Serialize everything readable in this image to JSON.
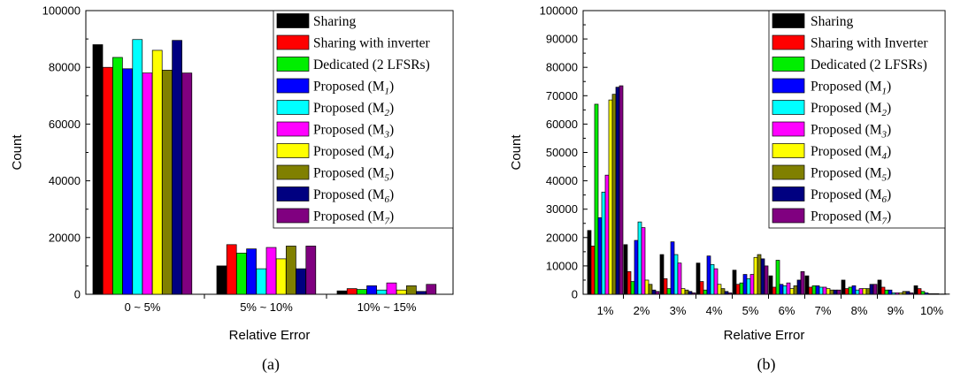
{
  "chart_data": [
    {
      "type": "bar",
      "caption": "(a)",
      "xlabel": "Relative Error",
      "ylabel": "Count",
      "ylim": [
        0,
        100000
      ],
      "yticks": [
        0,
        20000,
        40000,
        60000,
        80000,
        100000
      ],
      "categories": [
        "0  ~ 5%",
        "5%  ~ 10%",
        "10%  ~ 15%"
      ],
      "legend_position": "top-right",
      "series": [
        {
          "name": "Sharing",
          "legend": {
            "text": "Sharing",
            "sub": ""
          },
          "color": "#000000",
          "values": [
            88000,
            10000,
            1200
          ]
        },
        {
          "name": "Sharing with inverter",
          "legend": {
            "text": "Sharing with inverter",
            "sub": ""
          },
          "color": "#ff0000",
          "values": [
            80000,
            17500,
            2000
          ]
        },
        {
          "name": "Dedicated (2 LFSRs)",
          "legend": {
            "text": "Dedicated (2 LFSRs)",
            "sub": ""
          },
          "color": "#00ee00",
          "values": [
            83500,
            14500,
            1700
          ]
        },
        {
          "name": "Proposed (M1)",
          "legend": {
            "text": "Proposed (M",
            "sub": "1"
          },
          "color": "#0000ff",
          "values": [
            79500,
            16000,
            3000
          ]
        },
        {
          "name": "Proposed (M2)",
          "legend": {
            "text": "Proposed (M",
            "sub": "2"
          },
          "color": "#00ffff",
          "values": [
            89800,
            9000,
            1500
          ]
        },
        {
          "name": "Proposed (M3)",
          "legend": {
            "text": "Proposed (M",
            "sub": "3"
          },
          "color": "#ff00ff",
          "values": [
            78000,
            16500,
            4000
          ]
        },
        {
          "name": "Proposed (M4)",
          "legend": {
            "text": "Proposed (M",
            "sub": "4"
          },
          "color": "#ffff00",
          "values": [
            86000,
            12500,
            1500
          ]
        },
        {
          "name": "Proposed (M5)",
          "legend": {
            "text": "Proposed (M",
            "sub": "5"
          },
          "color": "#808000",
          "values": [
            79000,
            17000,
            3000
          ]
        },
        {
          "name": "Proposed (M6)",
          "legend": {
            "text": "Proposed (M",
            "sub": "6"
          },
          "color": "#000080",
          "values": [
            89500,
            9000,
            1000
          ]
        },
        {
          "name": "Proposed (M7)",
          "legend": {
            "text": "Proposed (M",
            "sub": "7"
          },
          "color": "#800080",
          "values": [
            78000,
            17000,
            3500
          ]
        }
      ]
    },
    {
      "type": "bar",
      "caption": "(b)",
      "xlabel": "Relative Error",
      "ylabel": "Count",
      "ylim": [
        0,
        100000
      ],
      "yticks": [
        0,
        10000,
        20000,
        30000,
        40000,
        50000,
        60000,
        70000,
        80000,
        90000,
        100000
      ],
      "categories": [
        "1%",
        "2%",
        "3%",
        "4%",
        "5%",
        "6%",
        "7%",
        "8%",
        "9%",
        "10%"
      ],
      "legend_position": "top-right",
      "series": [
        {
          "name": "Sharing",
          "legend": {
            "text": "Sharing",
            "sub": ""
          },
          "color": "#000000",
          "values": [
            22500,
            17500,
            14000,
            11000,
            8500,
            6500,
            6500,
            5000,
            5000,
            3000
          ]
        },
        {
          "name": "Sharing with Inverter",
          "legend": {
            "text": "Sharing with Inverter",
            "sub": ""
          },
          "color": "#ff0000",
          "values": [
            17000,
            8000,
            5500,
            4500,
            3500,
            2500,
            2500,
            2000,
            2500,
            2000
          ]
        },
        {
          "name": "Dedicated (2 LFSRs)",
          "legend": {
            "text": "Dedicated (2 LFSRs)",
            "sub": ""
          },
          "color": "#00ee00",
          "values": [
            67000,
            4500,
            2000,
            1500,
            4000,
            12000,
            3000,
            2500,
            1500,
            1000
          ]
        },
        {
          "name": "Proposed (M1)",
          "legend": {
            "text": "Proposed (M",
            "sub": "1"
          },
          "color": "#0000ff",
          "values": [
            27000,
            19000,
            18500,
            13500,
            7000,
            3500,
            3000,
            3000,
            1500,
            500
          ]
        },
        {
          "name": "Proposed (M2)",
          "legend": {
            "text": "Proposed (M",
            "sub": "2"
          },
          "color": "#00ffff",
          "values": [
            36000,
            25500,
            14000,
            10500,
            5500,
            3000,
            2500,
            1500,
            500,
            200
          ]
        },
        {
          "name": "Proposed (M3)",
          "legend": {
            "text": "Proposed (M",
            "sub": "3"
          },
          "color": "#ff00ff",
          "values": [
            42000,
            23500,
            11000,
            9000,
            7000,
            4000,
            2500,
            2000,
            500,
            200
          ]
        },
        {
          "name": "Proposed (M4)",
          "legend": {
            "text": "Proposed (M",
            "sub": "4"
          },
          "color": "#ffff00",
          "values": [
            68500,
            5000,
            2000,
            3500,
            13000,
            2000,
            2000,
            2000,
            500,
            200
          ]
        },
        {
          "name": "Proposed (M5)",
          "legend": {
            "text": "Proposed (M",
            "sub": "5"
          },
          "color": "#808000",
          "values": [
            70500,
            3500,
            1500,
            2000,
            14000,
            3000,
            1500,
            2000,
            1000,
            100
          ]
        },
        {
          "name": "Proposed (M6)",
          "legend": {
            "text": "Proposed (M",
            "sub": "6"
          },
          "color": "#000080",
          "values": [
            73000,
            1500,
            1000,
            1000,
            12500,
            5000,
            1500,
            3500,
            1000,
            100
          ]
        },
        {
          "name": "Proposed (M7)",
          "legend": {
            "text": "Proposed (M",
            "sub": "7"
          },
          "color": "#800080",
          "values": [
            73500,
            1000,
            500,
            500,
            10000,
            8000,
            1500,
            3500,
            500,
            100
          ]
        }
      ]
    }
  ]
}
